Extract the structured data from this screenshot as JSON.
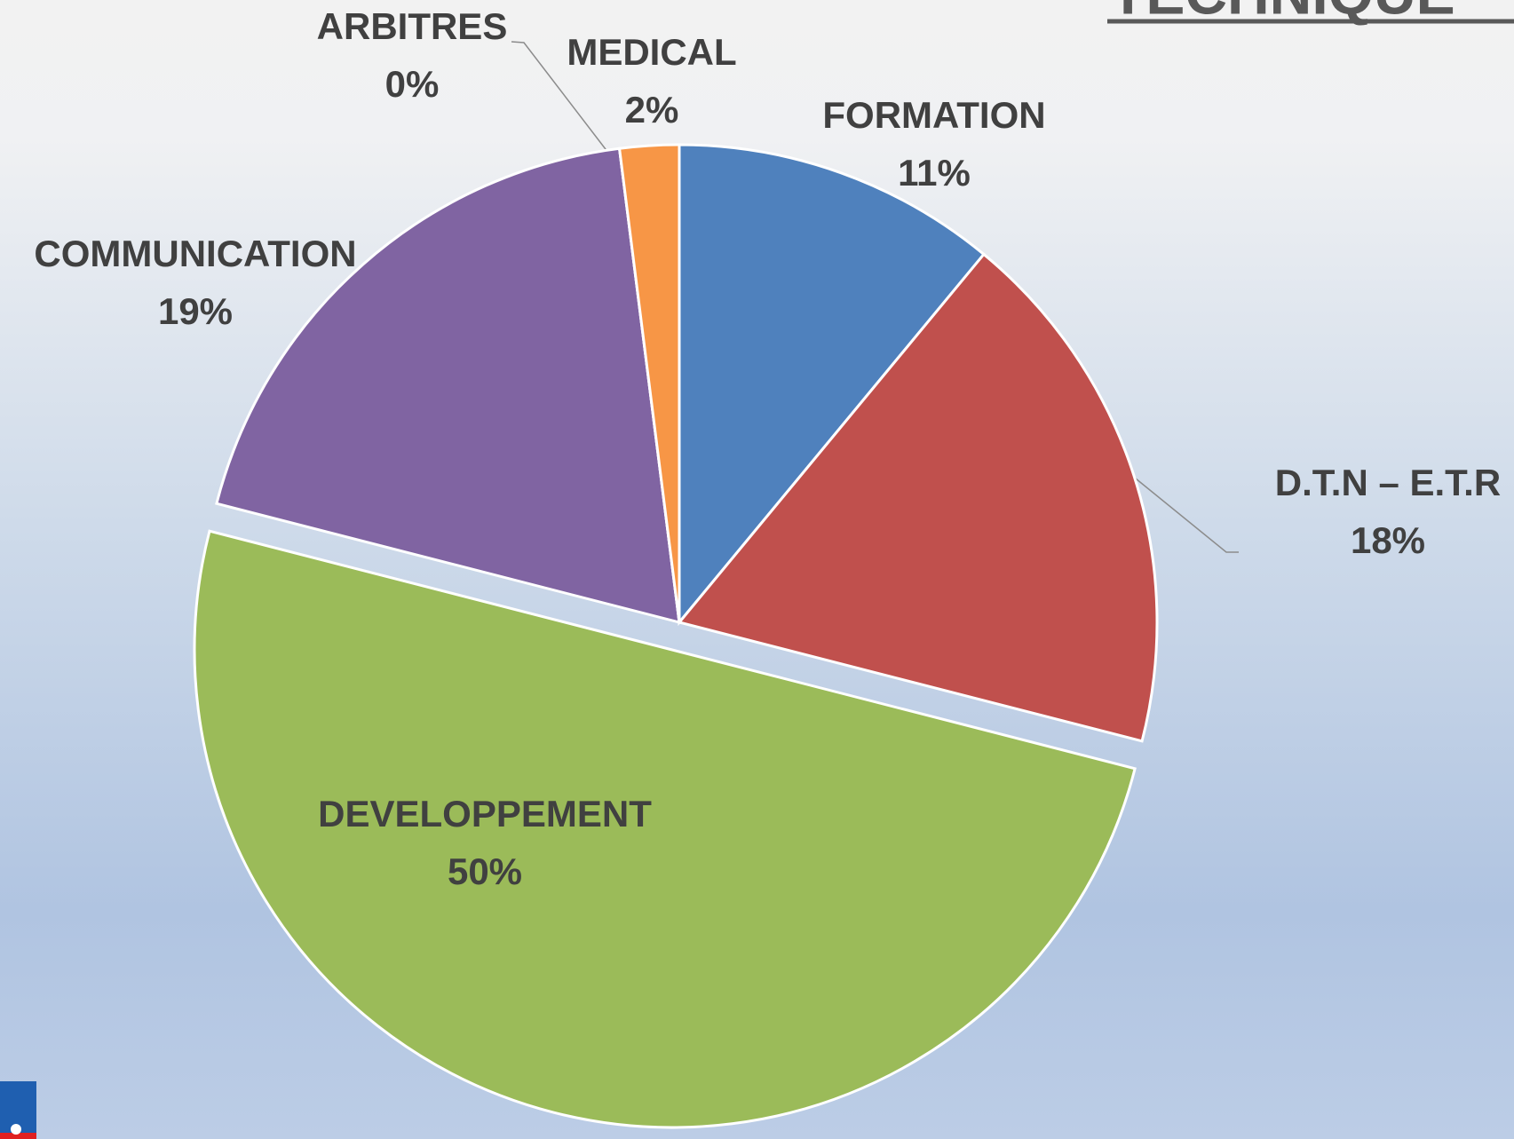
{
  "chart_data": {
    "type": "pie",
    "title": "TECHNIQUE",
    "categories": [
      "FORMATION",
      "D.T.N – E.T.R",
      "DEVELOPPEMENT",
      "COMMUNICATION",
      "ARBITRES",
      "MEDICAL"
    ],
    "values": [
      11,
      18,
      50,
      19,
      0,
      2
    ],
    "value_labels": [
      "11%",
      "18%",
      "50%",
      "19%",
      "0%",
      "2%"
    ],
    "colors": [
      "#4f81bd",
      "#c0504d",
      "#9bbb59",
      "#8064a2",
      "#4bacc6",
      "#f79646"
    ]
  }
}
